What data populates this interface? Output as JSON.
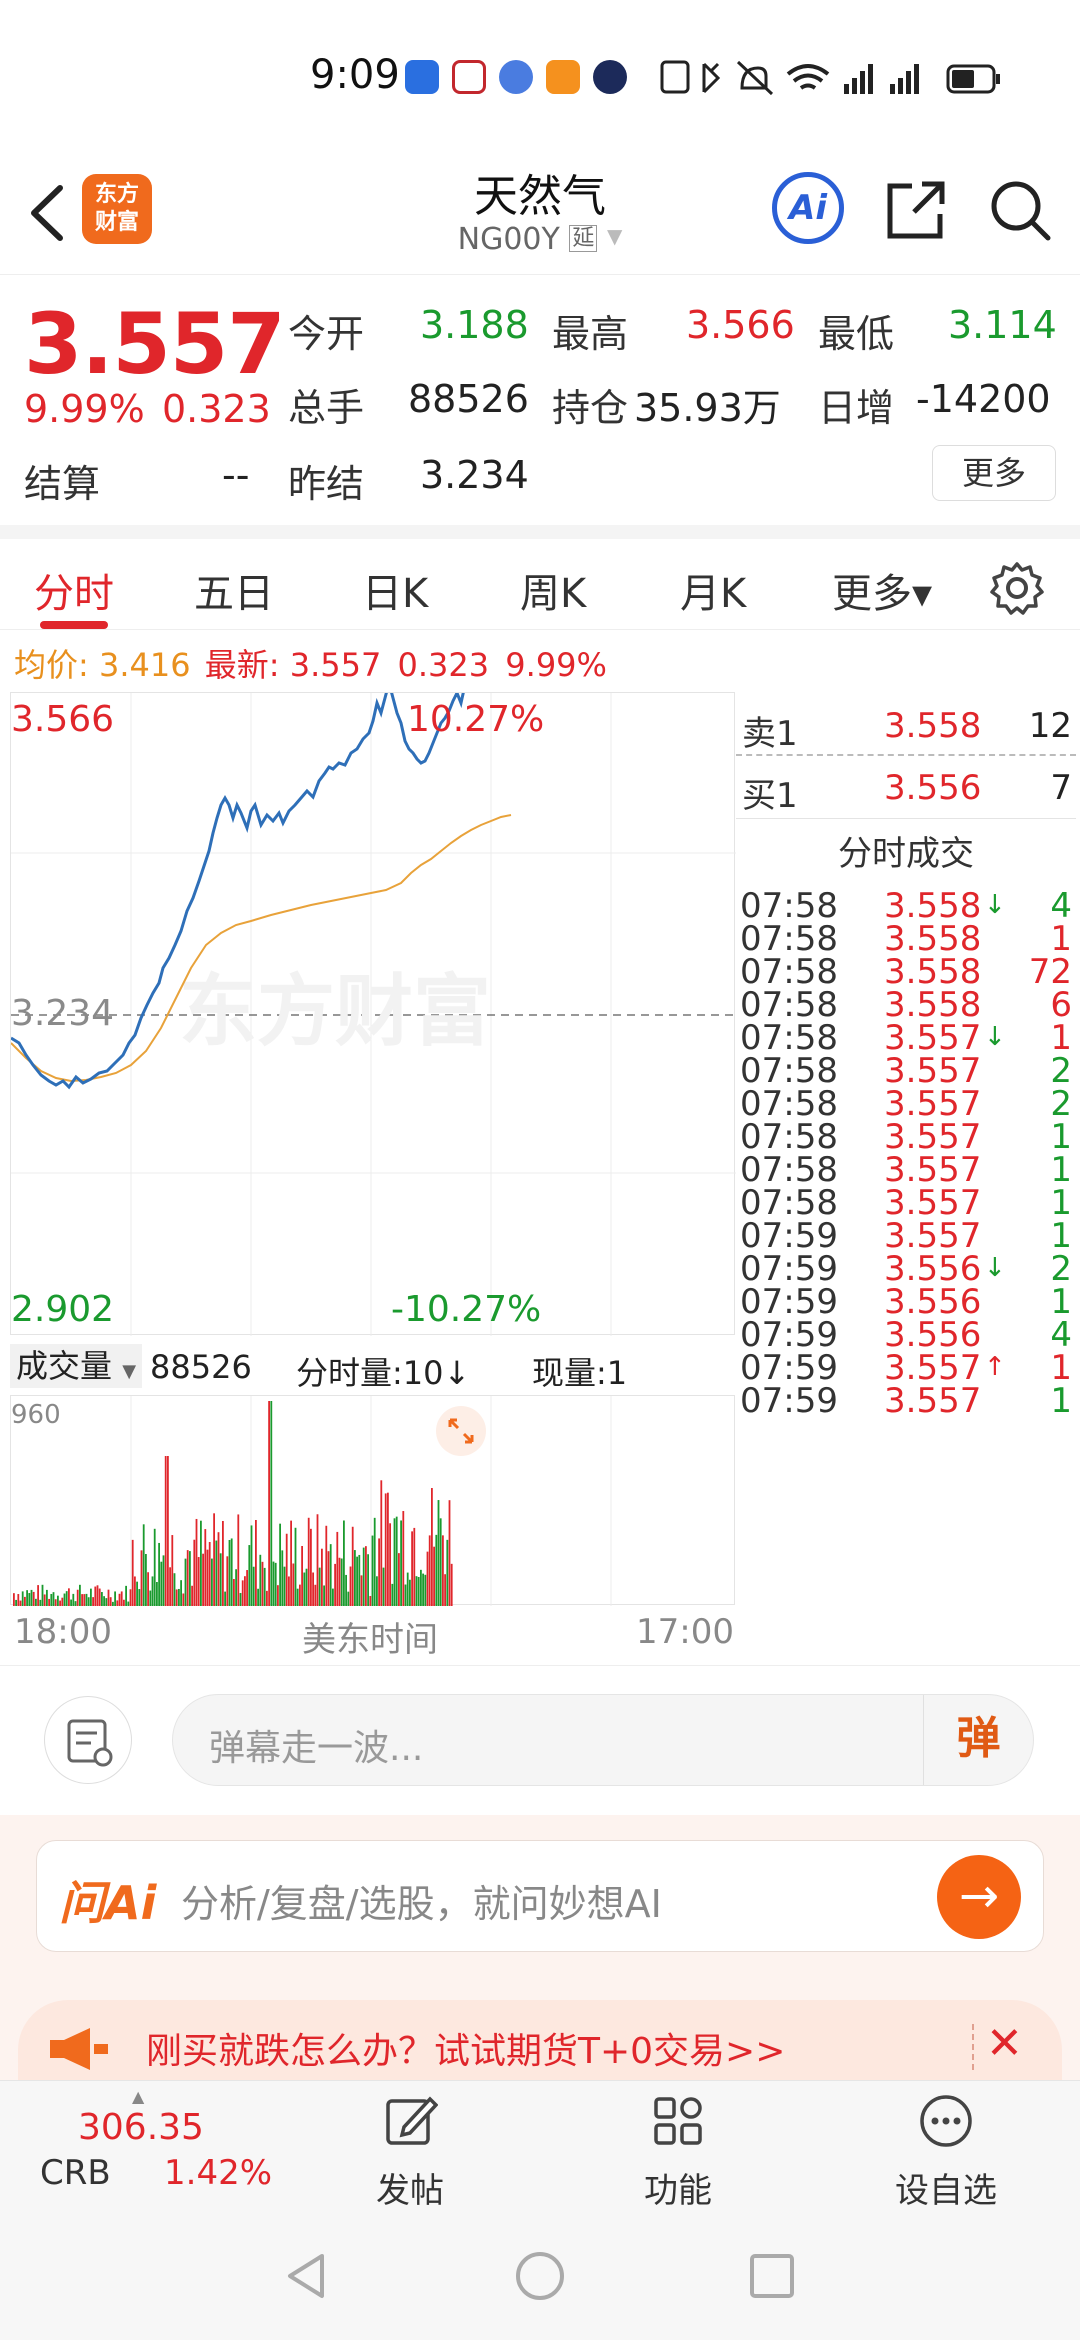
{
  "status_bar": {
    "time": "9:09"
  },
  "header": {
    "logo_line1": "东方",
    "logo_line2": "财富",
    "title": "天然气",
    "subtitle": "NG00Y",
    "subtitle_badge": "延",
    "ai_label": "Ai"
  },
  "quote": {
    "price": "3.557",
    "change_pct": "9.99%",
    "change_abs": "0.323",
    "fields": {
      "open_label": "今开",
      "open": "3.188",
      "high_label": "最高",
      "high": "3.566",
      "low_label": "最低",
      "low": "3.114",
      "volume_label": "总手",
      "volume": "88526",
      "oi_label": "持仓",
      "oi": "35.93万",
      "daily_inc_label": "日增",
      "daily_inc": "-14200",
      "settle_label": "结算",
      "settle": "--",
      "prev_settle_label": "昨结",
      "prev_settle": "3.234"
    },
    "more_label": "更多"
  },
  "tabs": [
    "分时",
    "五日",
    "日K",
    "周K",
    "月K",
    "更多▾"
  ],
  "info_line": {
    "avg_label": "均价:",
    "avg": "3.416",
    "latest_label": "最新:",
    "latest": "3.557",
    "chg": "0.323",
    "pct": "9.99%"
  },
  "chart": {
    "top_price": "3.566",
    "top_pct": "10.27%",
    "mid_price": "3.234",
    "bottom_price": "2.902",
    "bottom_pct": "-10.27%",
    "watermark": "东方财富",
    "colors": {
      "price_line": "#2e6fb8",
      "avg_line": "#e8a23a"
    }
  },
  "volume": {
    "selector_label": "成交量",
    "total": "88526",
    "tick_label": "分时量:10↓",
    "current_label": "现量:1",
    "max_label": "960",
    "time_start": "18:00",
    "time_zone": "美东时间",
    "time_end": "17:00"
  },
  "order_book": {
    "ask": {
      "label": "卖1",
      "price": "3.558",
      "qty": "12"
    },
    "bid": {
      "label": "买1",
      "price": "3.556",
      "qty": "7"
    },
    "trades_title": "分时成交",
    "trades": [
      {
        "time": "07:58",
        "price": "3.558",
        "arrow": "↓",
        "qty": "4",
        "side": "green"
      },
      {
        "time": "07:58",
        "price": "3.558",
        "arrow": "",
        "qty": "1",
        "side": "red"
      },
      {
        "time": "07:58",
        "price": "3.558",
        "arrow": "",
        "qty": "72",
        "side": "red"
      },
      {
        "time": "07:58",
        "price": "3.558",
        "arrow": "",
        "qty": "6",
        "side": "red"
      },
      {
        "time": "07:58",
        "price": "3.557",
        "arrow": "↓",
        "qty": "1",
        "side": "red"
      },
      {
        "time": "07:58",
        "price": "3.557",
        "arrow": "",
        "qty": "2",
        "side": "green"
      },
      {
        "time": "07:58",
        "price": "3.557",
        "arrow": "",
        "qty": "2",
        "side": "green"
      },
      {
        "time": "07:58",
        "price": "3.557",
        "arrow": "",
        "qty": "1",
        "side": "green"
      },
      {
        "time": "07:58",
        "price": "3.557",
        "arrow": "",
        "qty": "1",
        "side": "green"
      },
      {
        "time": "07:58",
        "price": "3.557",
        "arrow": "",
        "qty": "1",
        "side": "green"
      },
      {
        "time": "07:59",
        "price": "3.557",
        "arrow": "",
        "qty": "1",
        "side": "green"
      },
      {
        "time": "07:59",
        "price": "3.556",
        "arrow": "↓",
        "qty": "2",
        "side": "green"
      },
      {
        "time": "07:59",
        "price": "3.556",
        "arrow": "",
        "qty": "1",
        "side": "green"
      },
      {
        "time": "07:59",
        "price": "3.556",
        "arrow": "",
        "qty": "4",
        "side": "green"
      },
      {
        "time": "07:59",
        "price": "3.557",
        "arrow": "↑",
        "qty": "1",
        "side": "red"
      },
      {
        "time": "07:59",
        "price": "3.557",
        "arrow": "",
        "qty": "1",
        "side": "green"
      }
    ]
  },
  "danmu": {
    "placeholder": "弹幕走一波...",
    "send_label": "弹"
  },
  "ai": {
    "logo": "问Ai",
    "placeholder": "分析/复盘/选股，就问妙想AI",
    "go": "→"
  },
  "promo": {
    "text": "刚买就跌怎么办？试试期货T+0交易>>",
    "close": "✕"
  },
  "bottom_nav": {
    "index_value": "306.35",
    "index_name": "CRB",
    "index_pct": "1.42%",
    "post": "发帖",
    "functions": "功能",
    "watchlist": "设自选"
  }
}
